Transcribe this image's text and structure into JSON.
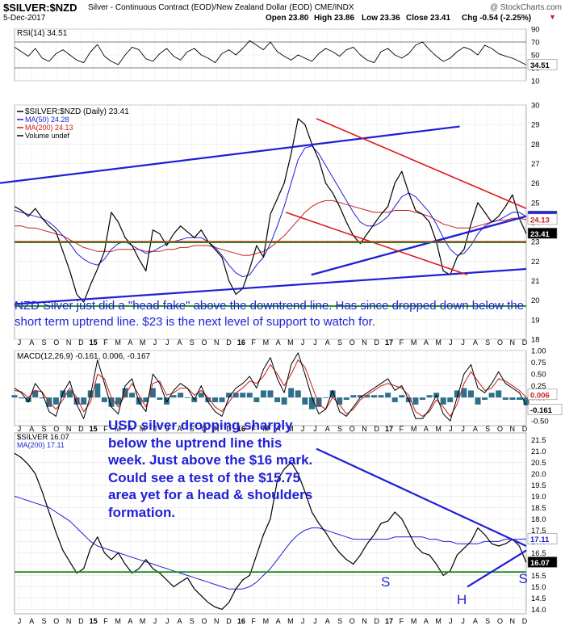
{
  "header": {
    "ticker": "$SILVER:$NZD",
    "description": "Silver - Continuous Contract (EOD)/New Zealand Dollar (EOD)  CME/INDX",
    "credit": "@ StockCharts.com",
    "date": "5-Dec-2017",
    "open": "Open 23.80",
    "high": "High 23.86",
    "low": "Low 23.36",
    "close": "Close 23.41",
    "chg": "Chg -0.54 (-2.25%)",
    "chg_marker": "▼"
  },
  "chart_data": [
    {
      "type": "line",
      "panel": "RSI",
      "title": "RSI(14) 34.51",
      "y_ticks": [
        "90",
        "70",
        "50",
        "30",
        "10"
      ],
      "ylim": [
        10,
        90
      ],
      "guides": [
        70,
        30
      ],
      "last_value_label": "34.51",
      "series": [
        {
          "values": [
            62,
            55,
            48,
            60,
            45,
            40,
            52,
            58,
            50,
            42,
            38,
            55,
            66,
            48,
            40,
            35,
            50,
            62,
            58,
            44,
            40,
            52,
            60,
            48,
            42,
            55,
            60,
            50,
            45,
            38,
            52,
            58,
            50,
            60,
            72,
            65,
            58,
            70,
            55,
            48,
            42,
            50,
            45,
            40,
            52,
            60,
            55,
            48,
            58,
            62,
            50,
            42,
            38,
            55,
            60,
            50,
            45,
            52,
            65,
            70,
            58,
            48,
            40,
            45,
            55,
            62,
            58,
            50,
            65,
            60,
            52,
            48,
            45,
            40,
            34.51
          ]
        }
      ]
    },
    {
      "type": "line",
      "panel": "price",
      "title": "$SILVER:$NZD (Daily) 23.41",
      "y_ticks": [
        "30",
        "29",
        "28",
        "27",
        "26",
        "25",
        "24",
        "23",
        "22",
        "21",
        "20",
        "19",
        "18"
      ],
      "ylim": [
        18,
        30
      ],
      "series": [
        {
          "name": "$SILVER:$NZD (Daily) 23.41",
          "values": [
            24.8,
            24.6,
            24.3,
            24.7,
            24.2,
            23.8,
            23.5,
            22.5,
            21.5,
            20.3,
            19.9,
            20.8,
            21.6,
            22.5,
            24.5,
            24.0,
            23.2,
            22.8,
            22.1,
            21.5,
            23.6,
            23.4,
            22.8,
            23.4,
            23.8,
            23.5,
            23.2,
            23.6,
            23.0,
            22.6,
            22.2,
            21.0,
            20.3,
            20.6,
            21.6,
            22.8,
            22.2,
            24.4,
            25.2,
            26.0,
            27.5,
            29.3,
            29.0,
            28.0,
            27.2,
            26.0,
            25.5,
            24.8,
            24.0,
            23.3,
            22.9,
            23.4,
            23.9,
            24.4,
            24.8,
            26.0,
            26.6,
            25.5,
            24.6,
            24.4,
            24.0,
            23.0,
            21.5,
            21.3,
            22.2,
            22.6,
            23.9,
            25.0,
            24.5,
            24.0,
            24.3,
            24.8,
            25.4,
            24.2,
            23.41
          ]
        },
        {
          "name": "MA(50) 24.28",
          "values": [
            24.6,
            24.5,
            24.4,
            24.3,
            24.2,
            24.0,
            23.7,
            23.3,
            22.9,
            22.4,
            22.1,
            21.9,
            21.8,
            22.1,
            22.6,
            22.9,
            23.0,
            22.8,
            22.6,
            22.4,
            22.5,
            22.7,
            22.9,
            23.0,
            23.1,
            23.2,
            23.2,
            23.2,
            23.0,
            22.7,
            22.3,
            21.8,
            21.4,
            21.2,
            21.3,
            21.8,
            22.2,
            22.9,
            23.8,
            24.8,
            26.0,
            27.2,
            27.8,
            27.9,
            27.5,
            26.9,
            26.3,
            25.7,
            25.1,
            24.5,
            24.0,
            23.8,
            23.8,
            24.0,
            24.3,
            24.8,
            25.3,
            25.5,
            25.3,
            24.9,
            24.5,
            23.9,
            23.2,
            22.6,
            22.3,
            22.4,
            22.8,
            23.4,
            23.8,
            24.0,
            24.1,
            24.3,
            24.5,
            24.5,
            24.28
          ]
        },
        {
          "name": "MA(200) 24.13",
          "values": [
            23.8,
            23.8,
            23.7,
            23.7,
            23.6,
            23.5,
            23.4,
            23.3,
            23.1,
            22.9,
            22.7,
            22.6,
            22.5,
            22.5,
            22.5,
            22.6,
            22.6,
            22.6,
            22.6,
            22.5,
            22.5,
            22.5,
            22.6,
            22.6,
            22.7,
            22.7,
            22.8,
            22.8,
            22.8,
            22.7,
            22.6,
            22.5,
            22.4,
            22.3,
            22.3,
            22.4,
            22.5,
            22.7,
            23.0,
            23.3,
            23.7,
            24.1,
            24.5,
            24.8,
            25.0,
            25.1,
            25.1,
            25.0,
            24.9,
            24.8,
            24.7,
            24.6,
            24.5,
            24.5,
            24.5,
            24.6,
            24.6,
            24.6,
            24.5,
            24.4,
            24.3,
            24.1,
            23.9,
            23.8,
            23.7,
            23.7,
            23.7,
            23.8,
            23.9,
            24.0,
            24.1,
            24.1,
            24.2,
            24.2,
            24.13
          ]
        }
      ],
      "legend": [
        "$SILVER:$NZD (Daily) 23.41",
        "MA(50) 24.28",
        "MA(200) 24.13",
        "Volume undef"
      ],
      "price_tags": [
        "24.28",
        "24.13",
        "23.41"
      ],
      "annotation": "NZD Silver just did a \"head fake\" above the downtrend line. Has since dropped down below the short term uptrend line. $23 is the next level of support to watch for."
    },
    {
      "type": "line",
      "panel": "MACD",
      "title": "MACD(12,26,9) -0.161, 0.006, -0.167",
      "y_ticks": [
        "1.00",
        "0.75",
        "0.50",
        "0.25",
        "0.00",
        "-0.25",
        "-0.50"
      ],
      "ylim": [
        -0.6,
        1.0
      ],
      "value_tags": [
        "0.006",
        "-0.161"
      ],
      "series": [
        {
          "name": "MACD",
          "values": [
            0.2,
            0.1,
            -0.1,
            0.3,
            0.1,
            -0.3,
            -0.4,
            0.1,
            0.35,
            -0.15,
            -0.45,
            0.05,
            0.8,
            0.3,
            -0.2,
            -0.35,
            0.25,
            0.4,
            -0.1,
            -0.3,
            0.5,
            0.3,
            -0.1,
            0.15,
            0.3,
            0.2,
            -0.05,
            0.25,
            -0.1,
            -0.3,
            -0.4,
            0.0,
            0.2,
            0.3,
            0.45,
            0.2,
            0.6,
            0.85,
            0.4,
            0.1,
            0.7,
            0.95,
            0.5,
            0.0,
            -0.35,
            -0.25,
            0.15,
            -0.3,
            -0.4,
            -0.2,
            0.0,
            0.1,
            0.2,
            0.3,
            0.4,
            0.15,
            0.25,
            -0.05,
            -0.45,
            -0.45,
            -0.25,
            0.05,
            -0.35,
            -0.5,
            0.0,
            0.5,
            0.7,
            0.2,
            0.1,
            0.3,
            0.55,
            0.3,
            0.2,
            0.1,
            -0.161
          ]
        },
        {
          "name": "Signal",
          "values": [
            0.15,
            0.12,
            0.0,
            0.15,
            0.12,
            -0.1,
            -0.25,
            -0.05,
            0.2,
            0.0,
            -0.3,
            -0.1,
            0.5,
            0.4,
            0.0,
            -0.2,
            0.05,
            0.3,
            0.05,
            -0.2,
            0.3,
            0.35,
            0.05,
            0.1,
            0.2,
            0.2,
            0.05,
            0.15,
            0.0,
            -0.2,
            -0.3,
            -0.1,
            0.1,
            0.2,
            0.35,
            0.3,
            0.45,
            0.7,
            0.5,
            0.25,
            0.5,
            0.8,
            0.65,
            0.25,
            -0.15,
            -0.25,
            0.0,
            -0.15,
            -0.35,
            -0.25,
            -0.05,
            0.05,
            0.15,
            0.25,
            0.3,
            0.25,
            0.2,
            0.05,
            -0.3,
            -0.4,
            -0.3,
            -0.05,
            -0.2,
            -0.4,
            -0.15,
            0.3,
            0.55,
            0.35,
            0.15,
            0.2,
            0.4,
            0.35,
            0.25,
            0.15,
            0.006
          ]
        },
        {
          "name": "Histogram",
          "values": [
            0.05,
            -0.02,
            -0.1,
            0.15,
            -0.02,
            -0.2,
            -0.15,
            0.15,
            0.15,
            -0.15,
            -0.15,
            0.15,
            0.3,
            -0.1,
            -0.2,
            -0.15,
            0.2,
            0.1,
            -0.15,
            -0.1,
            0.2,
            -0.05,
            -0.15,
            0.05,
            0.1,
            0.0,
            -0.1,
            0.1,
            -0.1,
            -0.1,
            -0.1,
            0.1,
            0.1,
            0.1,
            0.1,
            -0.1,
            0.15,
            0.15,
            -0.1,
            -0.15,
            0.2,
            0.15,
            -0.15,
            -0.25,
            -0.2,
            0.0,
            0.15,
            -0.15,
            -0.05,
            0.05,
            0.05,
            0.05,
            0.05,
            0.05,
            0.1,
            -0.1,
            0.05,
            -0.1,
            -0.15,
            -0.05,
            0.05,
            0.1,
            -0.15,
            -0.1,
            0.15,
            0.2,
            0.15,
            -0.15,
            -0.05,
            0.1,
            0.15,
            -0.05,
            -0.05,
            -0.05,
            -0.167
          ]
        }
      ]
    },
    {
      "type": "line",
      "panel": "USD silver",
      "title": "$SILVER 16.07",
      "y_ticks": [
        "21.5",
        "21.0",
        "20.5",
        "20.0",
        "19.5",
        "19.0",
        "18.5",
        "18.0",
        "17.5",
        "17.0",
        "16.5",
        "16.0",
        "15.5",
        "15.0",
        "14.5",
        "14.0"
      ],
      "ylim": [
        13.8,
        21.8
      ],
      "price_tags": [
        "17.11",
        "16.07"
      ],
      "series": [
        {
          "name": "$SILVER 16.07",
          "values": [
            20.9,
            20.7,
            20.4,
            20.0,
            19.2,
            18.3,
            17.4,
            16.6,
            16.1,
            15.6,
            15.8,
            16.7,
            17.2,
            16.5,
            16.2,
            16.5,
            16.0,
            15.6,
            15.8,
            16.2,
            15.8,
            15.6,
            15.3,
            15.0,
            15.2,
            15.4,
            14.9,
            14.6,
            14.3,
            14.1,
            14.0,
            14.3,
            14.9,
            15.3,
            15.5,
            16.4,
            17.3,
            18.0,
            19.7,
            20.2,
            20.5,
            20.0,
            19.2,
            18.3,
            17.8,
            17.4,
            16.9,
            16.5,
            16.2,
            16.0,
            16.4,
            16.9,
            17.3,
            17.8,
            17.9,
            18.3,
            18.0,
            17.4,
            16.8,
            16.5,
            16.4,
            16.0,
            15.5,
            15.7,
            16.4,
            16.7,
            17.0,
            17.6,
            17.3,
            16.9,
            16.8,
            16.9,
            17.1,
            16.8,
            16.07
          ]
        },
        {
          "name": "MA(200) 17.11",
          "values": [
            19.0,
            18.9,
            18.8,
            18.7,
            18.6,
            18.5,
            18.3,
            18.1,
            17.9,
            17.6,
            17.3,
            17.0,
            16.8,
            16.7,
            16.6,
            16.5,
            16.4,
            16.3,
            16.2,
            16.1,
            16.0,
            15.9,
            15.8,
            15.7,
            15.6,
            15.5,
            15.4,
            15.3,
            15.2,
            15.1,
            15.0,
            14.9,
            14.9,
            14.9,
            15.0,
            15.2,
            15.5,
            15.8,
            16.2,
            16.6,
            17.0,
            17.3,
            17.5,
            17.6,
            17.6,
            17.5,
            17.4,
            17.3,
            17.2,
            17.1,
            17.1,
            17.1,
            17.1,
            17.1,
            17.1,
            17.2,
            17.2,
            17.2,
            17.2,
            17.2,
            17.1,
            17.1,
            17.0,
            17.0,
            16.9,
            16.9,
            16.9,
            16.9,
            17.0,
            17.0,
            17.0,
            17.1,
            17.1,
            17.1,
            17.11
          ]
        }
      ],
      "legend": [
        "$SILVER 16.07",
        "MA(200) 17.11"
      ],
      "annotation": "USD silver dropping sharply below the uptrend line this week. Just above the $16 mark. Could see a test of the $15.75 area yet for a head & shoulders formation.",
      "pattern_labels": [
        "S",
        "H",
        "S"
      ]
    }
  ],
  "x_axis": {
    "labels": [
      "J",
      "A",
      "S",
      "O",
      "N",
      "D",
      "15",
      "F",
      "M",
      "A",
      "M",
      "J",
      "J",
      "A",
      "S",
      "O",
      "N",
      "D",
      "16",
      "F",
      "M",
      "A",
      "M",
      "J",
      "J",
      "A",
      "S",
      "O",
      "N",
      "D",
      "17",
      "F",
      "M",
      "A",
      "M",
      "J",
      "J",
      "A",
      "S",
      "O",
      "N",
      "D"
    ],
    "bold": [
      "15",
      "16",
      "17"
    ]
  },
  "colors": {
    "price": "#000000",
    "ma50": "#1f1fd6",
    "ma200": "#c81e1e",
    "trend_blue": "#1f1fd6",
    "trend_red": "#e01818",
    "support_green": "#1c8a1c",
    "annotation_text": "#1f1fd6",
    "macd_hist": "#2e6f8c",
    "chg_down": "#c81e1e"
  }
}
